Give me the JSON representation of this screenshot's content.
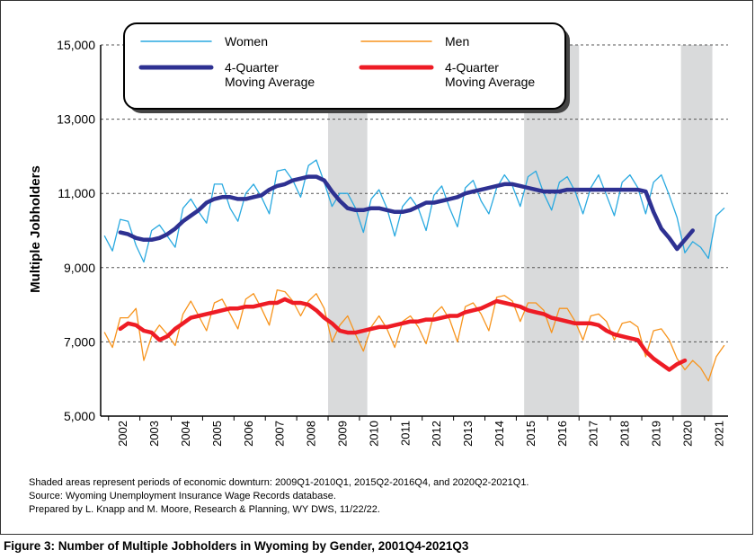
{
  "chart_data": {
    "type": "line",
    "title": "",
    "xlabel": "",
    "ylabel": "Multiple Jobholders",
    "ylim": [
      5000,
      15000
    ],
    "yticks": [
      5000,
      7000,
      9000,
      11000,
      13000,
      15000
    ],
    "ytick_labels": [
      "5,000",
      "7,000",
      "9,000",
      "11,000",
      "13,000",
      "15,000"
    ],
    "x_tick_labels": [
      "2002",
      "2003",
      "2004",
      "2005",
      "2006",
      "2007",
      "2008",
      "2009",
      "2010",
      "2011",
      "2012",
      "2013",
      "2014",
      "2015",
      "2016",
      "2017",
      "2018",
      "2019",
      "2020",
      "2021"
    ],
    "x_start": "2001Q4",
    "x_end": "2021Q3",
    "legend_position": "top",
    "shaded_periods": [
      {
        "start": "2009Q1",
        "end": "2010Q1"
      },
      {
        "start": "2015Q2",
        "end": "2016Q4"
      },
      {
        "start": "2020Q2",
        "end": "2021Q1"
      }
    ],
    "series": [
      {
        "name": "Women",
        "color": "#29a9e0",
        "values": [
          9850,
          9450,
          10300,
          10250,
          9600,
          9150,
          10000,
          10150,
          9850,
          9550,
          10600,
          10850,
          10500,
          10200,
          11250,
          11250,
          10600,
          10250,
          11000,
          11250,
          10900,
          10450,
          11600,
          11650,
          11350,
          10900,
          11750,
          11900,
          11300,
          10650,
          11000,
          11000,
          10600,
          9950,
          10850,
          11100,
          10600,
          9850,
          10650,
          10900,
          10600,
          10000,
          10950,
          11200,
          10600,
          10100,
          11150,
          11350,
          10800,
          10450,
          11150,
          11500,
          11200,
          10650,
          11450,
          11600,
          11000,
          10550,
          11300,
          11450,
          11050,
          10450,
          11150,
          11500,
          10950,
          10400,
          11300,
          11500,
          11150,
          10450,
          11300,
          11500,
          10950,
          10350,
          9400,
          9700,
          9550,
          9250,
          10400,
          10600
        ]
      },
      {
        "name": "Men",
        "color": "#f7941d",
        "values": [
          7250,
          6850,
          7650,
          7650,
          7900,
          6500,
          7150,
          7450,
          7200,
          6900,
          7750,
          8100,
          7700,
          7300,
          8050,
          8150,
          7750,
          7350,
          8150,
          8300,
          7900,
          7450,
          8400,
          8350,
          8100,
          7700,
          8100,
          8300,
          7900,
          7000,
          7450,
          7700,
          7200,
          6750,
          7400,
          7700,
          7350,
          6850,
          7550,
          7700,
          7400,
          6950,
          7750,
          7950,
          7600,
          7000,
          7950,
          8050,
          7750,
          7300,
          8200,
          8250,
          8100,
          7550,
          8050,
          8050,
          7850,
          7250,
          7900,
          7900,
          7550,
          7050,
          7700,
          7750,
          7550,
          7050,
          7500,
          7550,
          7400,
          6600,
          7300,
          7350,
          7050,
          6550,
          6250,
          6500,
          6300,
          5950,
          6600,
          6900
        ]
      },
      {
        "name": "4-Quarter Moving Average",
        "color": "#2e3192",
        "values": [
          null,
          null,
          9950,
          9900,
          9800,
          9750,
          9750,
          9800,
          9900,
          10050,
          10250,
          10400,
          10550,
          10750,
          10850,
          10900,
          10900,
          10850,
          10850,
          10900,
          10950,
          11100,
          11200,
          11250,
          11350,
          11400,
          11450,
          11450,
          11350,
          11050,
          10800,
          10600,
          10550,
          10550,
          10600,
          10600,
          10550,
          10500,
          10500,
          10550,
          10650,
          10750,
          10750,
          10800,
          10850,
          10900,
          11000,
          11050,
          11100,
          11150,
          11200,
          11250,
          11250,
          11200,
          11150,
          11100,
          11050,
          11050,
          11050,
          11100,
          11100,
          11100,
          11100,
          11100,
          11100,
          11100,
          11100,
          11100,
          11100,
          11050,
          10500,
          10050,
          9800,
          9500,
          9750,
          10000,
          null,
          null,
          null,
          null
        ]
      },
      {
        "name": "4-Quarter Moving Average",
        "color": "#ee1c25",
        "values": [
          null,
          null,
          7350,
          7500,
          7450,
          7300,
          7250,
          7050,
          7150,
          7350,
          7500,
          7650,
          7700,
          7750,
          7800,
          7850,
          7900,
          7900,
          7950,
          7950,
          8000,
          8050,
          8050,
          8150,
          8050,
          8050,
          8000,
          7850,
          7650,
          7500,
          7300,
          7250,
          7250,
          7300,
          7350,
          7400,
          7400,
          7450,
          7500,
          7550,
          7550,
          7600,
          7600,
          7650,
          7700,
          7700,
          7800,
          7850,
          7900,
          8000,
          8100,
          8050,
          8000,
          7950,
          7850,
          7800,
          7750,
          7650,
          7600,
          7550,
          7500,
          7500,
          7500,
          7450,
          7300,
          7200,
          7150,
          7100,
          7050,
          6750,
          6550,
          6400,
          6250,
          6400,
          6500,
          null,
          null,
          null,
          null,
          null
        ]
      }
    ],
    "legend": [
      {
        "label": "Women",
        "color": "#29a9e0",
        "style": "thin"
      },
      {
        "label": "Men",
        "color": "#f7941d",
        "style": "thin"
      },
      {
        "label": "4-Quarter Moving Average",
        "label_lines": [
          "4-Quarter",
          "Moving Average"
        ],
        "color": "#2e3192",
        "style": "thick"
      },
      {
        "label": "4-Quarter Moving Average",
        "label_lines": [
          "4-Quarter",
          "Moving Average"
        ],
        "color": "#ee1c25",
        "style": "thick"
      }
    ]
  },
  "notes": {
    "line1": "Shaded areas represent periods of economic downturn: 2009Q1-2010Q1, 2015Q2-2016Q4, and 2020Q2-2021Q1.",
    "line2": "Source: Wyoming Unemployment Insurance Wage Records database.",
    "line3": "Prepared by L. Knapp and M. Moore, Research & Planning, WY DWS, 11/22/22."
  },
  "caption": "Figure 3: Number of Multiple Jobholders in Wyoming by Gender, 2001Q4-2021Q3"
}
